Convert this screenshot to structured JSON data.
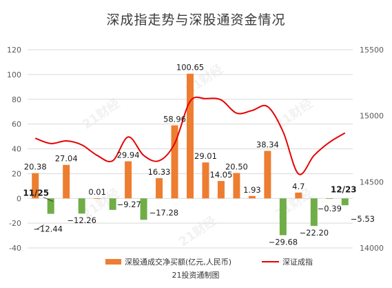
{
  "title": "深成指走势与深股通资金情况",
  "source": "21投资通制图",
  "watermark": "21财经",
  "colors": {
    "bar_positive": "#ed7d31",
    "bar_negative": "#70ad47",
    "line": "#e60000",
    "grid": "#d9d9d9"
  },
  "chart_data": {
    "type": "bar",
    "y_left": {
      "min": -40,
      "max": 120,
      "ticks": [
        -40,
        -20,
        0,
        20,
        40,
        60,
        80,
        100,
        120
      ]
    },
    "y_right": {
      "min": 14000,
      "max": 15500,
      "ticks": [
        14000,
        14500,
        15000,
        15500
      ]
    },
    "date_labels": [
      {
        "index": 0,
        "text": "11/25"
      },
      {
        "index": 20,
        "text": "12/23"
      }
    ],
    "series": [
      {
        "name": "深股通成交净买额(亿元,人民币)",
        "kind": "bar",
        "axis": "left",
        "values": [
          20.38,
          -12.44,
          27.04,
          -12.26,
          0.01,
          -9.27,
          29.94,
          -17.28,
          16.33,
          58.96,
          100.65,
          29.01,
          14.05,
          20.5,
          1.93,
          38.34,
          -29.68,
          4.7,
          -22.2,
          -0.39,
          -5.53
        ],
        "labels": [
          "20.38",
          "−12.44",
          "27.04",
          "−12.26",
          "0.01",
          "−9.27",
          "29.94",
          "−17.28",
          "16.33",
          "58.96",
          "100.65",
          "29.01",
          "14.05",
          "20.50",
          "1.93",
          "38.34",
          "−29.68",
          "4.7",
          "−22.20",
          "−0.39",
          "−5.53"
        ]
      },
      {
        "name": "深证成指",
        "kind": "line",
        "axis": "right",
        "values": [
          14830,
          14790,
          14810,
          14780,
          14700,
          14660,
          14840,
          14700,
          14660,
          14790,
          15110,
          15130,
          15120,
          15020,
          15040,
          15070,
          14880,
          14560,
          14700,
          14800,
          14870
        ]
      }
    ]
  }
}
